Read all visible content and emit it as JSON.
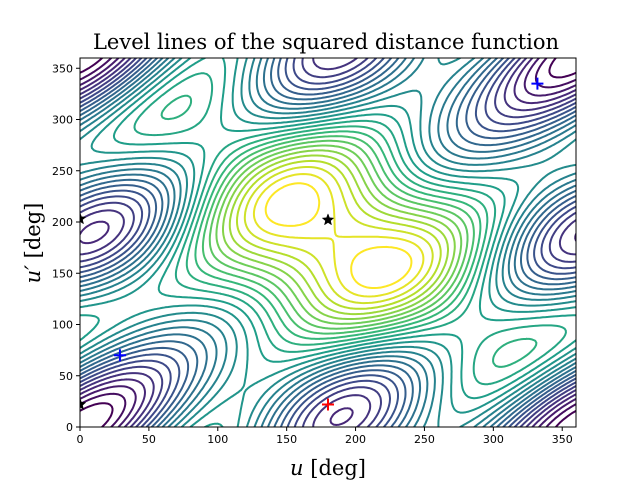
{
  "chart_data": {
    "type": "contour",
    "title": "Level lines of the squared distance function",
    "xlabel": {
      "var": "u",
      "unit": " [deg]"
    },
    "ylabel": {
      "var": "u′",
      "unit": " [deg]"
    },
    "xlim": [
      0,
      360
    ],
    "ylim": [
      0,
      360
    ],
    "xticks": [
      0,
      50,
      100,
      150,
      200,
      250,
      300,
      350
    ],
    "yticks": [
      0,
      50,
      100,
      150,
      200,
      250,
      300,
      350
    ],
    "grid": false,
    "colormap": "viridis",
    "levels": 28,
    "markers": [
      {
        "symbol": "plus",
        "color": "#ff0000",
        "x": 180,
        "y": 22
      },
      {
        "symbol": "plus",
        "color": "#0000ff",
        "x": 29,
        "y": 70
      },
      {
        "symbol": "plus",
        "color": "#0000ff",
        "x": 332,
        "y": 335
      },
      {
        "symbol": "star",
        "color": "#000000",
        "x": 180,
        "y": 202
      },
      {
        "symbol": "star",
        "color": "#000000",
        "x": 0,
        "y": 203
      },
      {
        "symbol": "star",
        "color": "#000000",
        "x": 0,
        "y": 22
      }
    ]
  }
}
